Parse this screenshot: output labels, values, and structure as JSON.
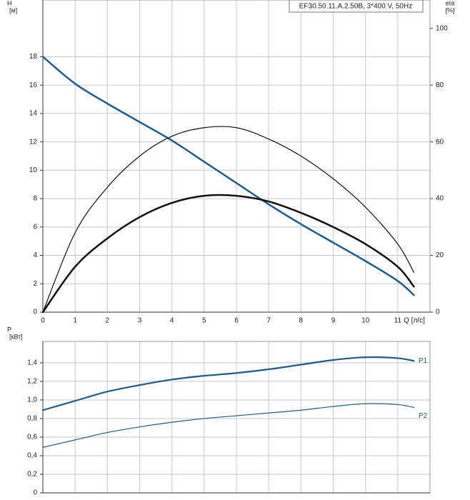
{
  "chart_data": [
    {
      "type": "line",
      "title": "EF30.50.11.A.2.50B, 3*400 V, 50Hz",
      "ylabel": [
        "H",
        "[м]"
      ],
      "y2label": [
        "eta",
        "[%]"
      ],
      "xlabel": "Q [л/с]",
      "x": [
        0,
        1,
        2,
        3,
        4,
        5,
        6,
        7,
        8,
        9,
        10,
        11,
        11.5
      ],
      "xlim": [
        0,
        12
      ],
      "xticks": [
        0,
        1,
        2,
        3,
        4,
        5,
        6,
        7,
        8,
        9,
        10,
        11
      ],
      "ylim": [
        0,
        22
      ],
      "yticks": [
        0,
        2,
        4,
        6,
        8,
        10,
        12,
        14,
        16,
        18
      ],
      "y2lim": [
        0,
        110
      ],
      "y2ticks": [
        0,
        20,
        40,
        60,
        80,
        100
      ],
      "grid": true,
      "series": [
        {
          "color": "#1f5a8c",
          "width": 2.5,
          "values": [
            18,
            16.1,
            14.7,
            13.4,
            12.1,
            10.6,
            9.1,
            7.6,
            6.2,
            4.9,
            3.6,
            2.2,
            1.2
          ]
        },
        {
          "color": "#111111",
          "width": 1.2,
          "axis": "y2",
          "values": [
            0,
            28,
            44,
            55,
            62,
            65,
            65,
            61,
            55,
            47,
            37,
            24,
            14
          ]
        },
        {
          "color": "#111111",
          "width": 2.5,
          "axis": "y2",
          "values": [
            0,
            16,
            26,
            33.5,
            38.5,
            41,
            41,
            39,
            35,
            30,
            24,
            16,
            9
          ]
        }
      ]
    },
    {
      "type": "line",
      "ylabel": [
        "P",
        "[кВт]"
      ],
      "x": [
        0,
        1,
        2,
        3,
        4,
        5,
        6,
        7,
        8,
        9,
        10,
        11,
        11.5
      ],
      "xlim": [
        0,
        12
      ],
      "xticks": [
        0,
        1,
        2,
        3,
        4,
        5,
        6,
        7,
        8,
        9,
        10,
        11
      ],
      "ylim": [
        0,
        1.63
      ],
      "yticks": [
        0,
        {
          "value": 0.2,
          "label": "0,2"
        },
        {
          "value": 0.4,
          "label": "0,4"
        },
        {
          "value": 0.6,
          "label": "0,6"
        },
        {
          "value": 0.8,
          "label": "0,8"
        },
        {
          "value": 1.0,
          "label": "1,0"
        },
        {
          "value": 1.2,
          "label": "1,2"
        },
        {
          "value": 1.4,
          "label": "1,4"
        }
      ],
      "grid": true,
      "series": [
        {
          "name": "P1",
          "color": "#1f5a8c",
          "width": 2.2,
          "values": [
            0.89,
            0.99,
            1.09,
            1.16,
            1.22,
            1.26,
            1.29,
            1.33,
            1.38,
            1.43,
            1.46,
            1.45,
            1.42
          ]
        },
        {
          "name": "P2",
          "color": "#1f5a8c",
          "width": 1.2,
          "values": [
            0.49,
            0.57,
            0.65,
            0.71,
            0.76,
            0.8,
            0.83,
            0.86,
            0.89,
            0.93,
            0.96,
            0.95,
            0.92
          ]
        }
      ]
    }
  ]
}
